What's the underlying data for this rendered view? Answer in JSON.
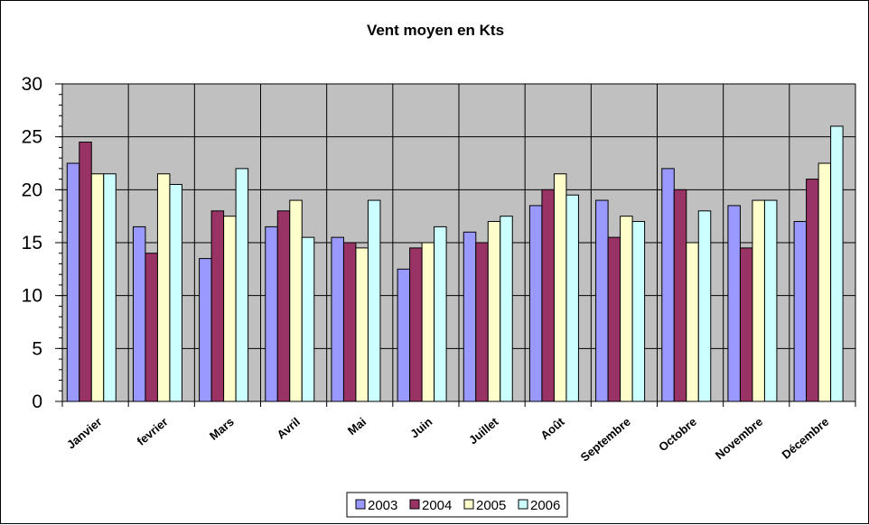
{
  "chart_data": {
    "type": "bar",
    "title": "Vent moyen en Kts",
    "xlabel": "",
    "ylabel": "",
    "ylim": [
      0,
      30
    ],
    "yticks": [
      "0",
      "5",
      "10",
      "15",
      "20",
      "25",
      "30"
    ],
    "grid": true,
    "legend": "bottom",
    "categories": [
      "Janvier",
      "fevrier",
      "Mars",
      "Avril",
      "Mai",
      "Juin",
      "Juillet",
      "Août",
      "Septembre",
      "Octobre",
      "Novembre",
      "Décembre"
    ],
    "series": [
      {
        "name": "2003",
        "color": "#9999ff",
        "values": [
          22.5,
          16.5,
          13.5,
          16.5,
          15.5,
          12.5,
          16,
          18.5,
          19,
          22,
          18.5,
          17
        ]
      },
      {
        "name": "2004",
        "color": "#993366",
        "values": [
          24.5,
          14,
          18,
          18,
          15,
          14.5,
          15,
          20,
          15.5,
          20,
          14.5,
          21
        ]
      },
      {
        "name": "2005",
        "color": "#ffffcc",
        "values": [
          21.5,
          21.5,
          17.5,
          19,
          14.5,
          15,
          17,
          21.5,
          17.5,
          15,
          19,
          22.5
        ]
      },
      {
        "name": "2006",
        "color": "#ccffff",
        "values": [
          21.5,
          20.5,
          22,
          15.5,
          19,
          16.5,
          17.5,
          19.5,
          17,
          18,
          19,
          26
        ]
      }
    ],
    "plot_background": "#c0c0c0"
  }
}
